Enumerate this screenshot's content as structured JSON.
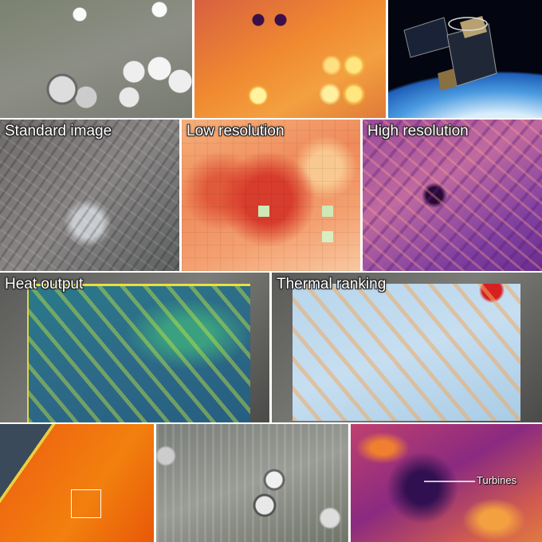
{
  "panels": [
    {
      "label": "Standard image"
    },
    {
      "label": "Low resolution"
    },
    {
      "label": "High resolution"
    },
    {
      "label": "Heat output"
    },
    {
      "label": "Thermal ranking"
    }
  ],
  "annotation": {
    "label": "Turbines"
  }
}
